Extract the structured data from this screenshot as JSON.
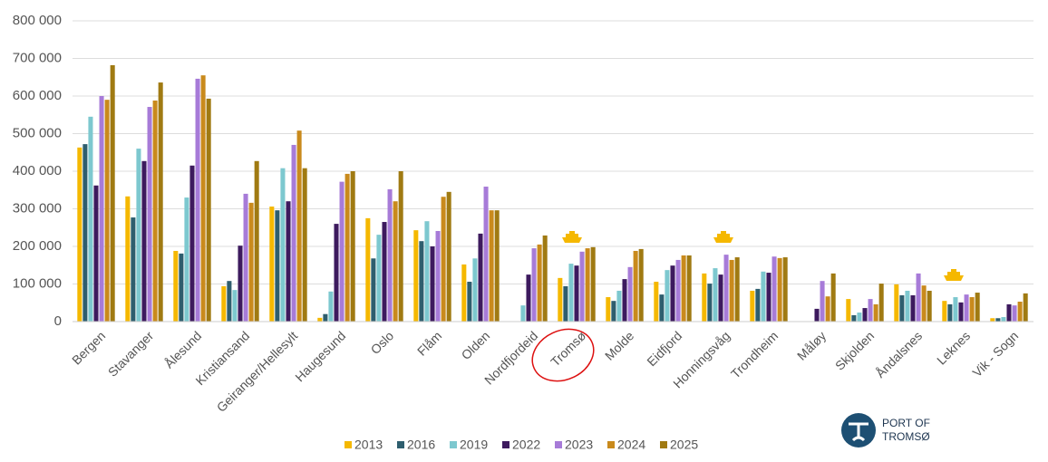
{
  "chart_data": {
    "type": "bar",
    "categories": [
      "Bergen",
      "Stavanger",
      "Ålesund",
      "Kristiansand",
      "Geiranger/Hellesylt",
      "Haugesund",
      "Oslo",
      "Flåm",
      "Olden",
      "Nordfjordeid",
      "Tromsø",
      "Molde",
      "Eidfjord",
      "Honningsvåg",
      "Trondheim",
      "Måløy",
      "Skjolden",
      "Åndalsnes",
      "Leknes",
      "Vik - Sogn"
    ],
    "series": [
      {
        "name": "2013",
        "color": "#f5b800",
        "values": [
          463000,
          333000,
          188000,
          94000,
          306000,
          10000,
          275000,
          243000,
          152000,
          null,
          116000,
          65000,
          106000,
          128000,
          82000,
          null,
          60000,
          99000,
          55000,
          9000
        ]
      },
      {
        "name": "2016",
        "color": "#2e5e6e",
        "values": [
          472000,
          277000,
          181000,
          108000,
          296000,
          20000,
          168000,
          214000,
          106000,
          null,
          94000,
          55000,
          72000,
          101000,
          87000,
          null,
          17000,
          70000,
          46000,
          9000
        ]
      },
      {
        "name": "2019",
        "color": "#7dc8cf",
        "values": [
          545000,
          460000,
          330000,
          84000,
          408000,
          80000,
          231000,
          267000,
          168000,
          43000,
          154000,
          82000,
          137000,
          142000,
          133000,
          null,
          24000,
          82000,
          65000,
          12000
        ]
      },
      {
        "name": "2022",
        "color": "#3d1a5e",
        "values": [
          362000,
          427000,
          415000,
          202000,
          320000,
          260000,
          265000,
          200000,
          234000,
          125000,
          149000,
          113000,
          149000,
          125000,
          130000,
          34000,
          36000,
          70000,
          51000,
          46000
        ]
      },
      {
        "name": "2023",
        "color": "#a77bd8",
        "values": [
          600000,
          571000,
          646000,
          340000,
          470000,
          372000,
          352000,
          241000,
          359000,
          195000,
          186000,
          145000,
          164000,
          178000,
          173000,
          108000,
          60000,
          128000,
          72000,
          43000
        ]
      },
      {
        "name": "2024",
        "color": "#c98a1c",
        "values": [
          590000,
          588000,
          655000,
          316000,
          508000,
          393000,
          320000,
          332000,
          296000,
          205000,
          195000,
          188000,
          176000,
          164000,
          169000,
          67000,
          46000,
          96000,
          65000,
          53000
        ]
      },
      {
        "name": "2025",
        "color": "#a07a12",
        "values": [
          682000,
          636000,
          593000,
          427000,
          408000,
          400000,
          400000,
          345000,
          296000,
          229000,
          198000,
          193000,
          176000,
          171000,
          171000,
          128000,
          101000,
          82000,
          77000,
          75000
        ]
      }
    ],
    "ylim": [
      0,
      800000
    ],
    "yticks": [
      0,
      {
        "value": 100000,
        "label": "100 000"
      },
      {
        "value": 200000,
        "label": "200 000"
      },
      {
        "value": 300000,
        "label": "300 000"
      },
      {
        "value": 400000,
        "label": "400 000"
      },
      {
        "value": 500000,
        "label": "500 000"
      },
      {
        "value": 600000,
        "label": "600 000"
      },
      {
        "value": 700000,
        "label": "700 000"
      },
      {
        "value": 800000,
        "label": "800 000"
      }
    ],
    "grid": true,
    "logo": [
      "PORT OF",
      "TROMSØ"
    ]
  }
}
